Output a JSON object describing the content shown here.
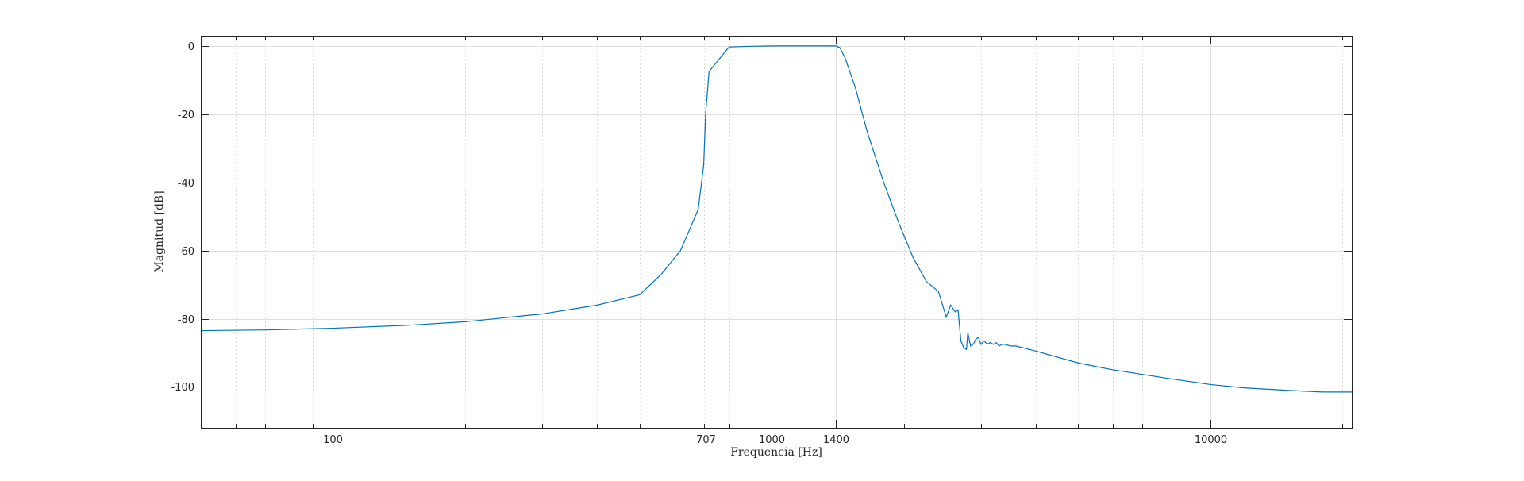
{
  "chart_data": {
    "type": "line",
    "xlabel": "Frequencia [Hz]",
    "ylabel": "Magnitud [dB]",
    "xscale": "log",
    "xlim": [
      50,
      21000
    ],
    "ylim": [
      -112,
      3
    ],
    "grid": true,
    "xticks": [
      100,
      707,
      1000,
      1400,
      10000
    ],
    "xtick_labels": [
      "100",
      "707",
      "1000",
      "1400",
      "10000"
    ],
    "yticks": [
      0,
      -20,
      -40,
      -60,
      -80,
      -100
    ],
    "ytick_labels": [
      "0",
      "-20",
      "-40",
      "-60",
      "-80",
      "-100"
    ],
    "series": [
      {
        "color": "#0072bd",
        "x": [
          50,
          70,
          100,
          150,
          200,
          300,
          400,
          500,
          560,
          620,
          680,
          700,
          707,
          720,
          800,
          900,
          1000,
          1100,
          1200,
          1300,
          1380,
          1400,
          1430,
          1470,
          1550,
          1650,
          1800,
          1950,
          2100,
          2250,
          2400,
          2500,
          2560,
          2620,
          2660,
          2700,
          2740,
          2780,
          2800,
          2840,
          2880,
          2920,
          2960,
          3000,
          3050,
          3100,
          3150,
          3200,
          3250,
          3300,
          3350,
          3400,
          3500,
          3600,
          4000,
          5000,
          6000,
          8000,
          10000,
          12000,
          15000,
          18000,
          21000
        ],
        "y": [
          -83.5,
          -83.3,
          -82.8,
          -81.9,
          -80.9,
          -78.6,
          -76,
          -73,
          -67,
          -60,
          -48,
          -35,
          -20,
          -7.5,
          -0.3,
          -0.1,
          0,
          0,
          0,
          0,
          0,
          0,
          -0.5,
          -3.5,
          -12,
          -25,
          -40,
          -52,
          -62,
          -69,
          -72,
          -79.5,
          -76,
          -78,
          -77.5,
          -86.5,
          -88.5,
          -89,
          -84,
          -88,
          -87.5,
          -86,
          -85.5,
          -87.5,
          -86.5,
          -87.5,
          -87,
          -87.5,
          -87,
          -88,
          -87.5,
          -87.5,
          -88,
          -88,
          -89.5,
          -93,
          -95,
          -97.5,
          -99.3,
          -100.3,
          -101,
          -101.5,
          -101.5
        ]
      }
    ]
  }
}
